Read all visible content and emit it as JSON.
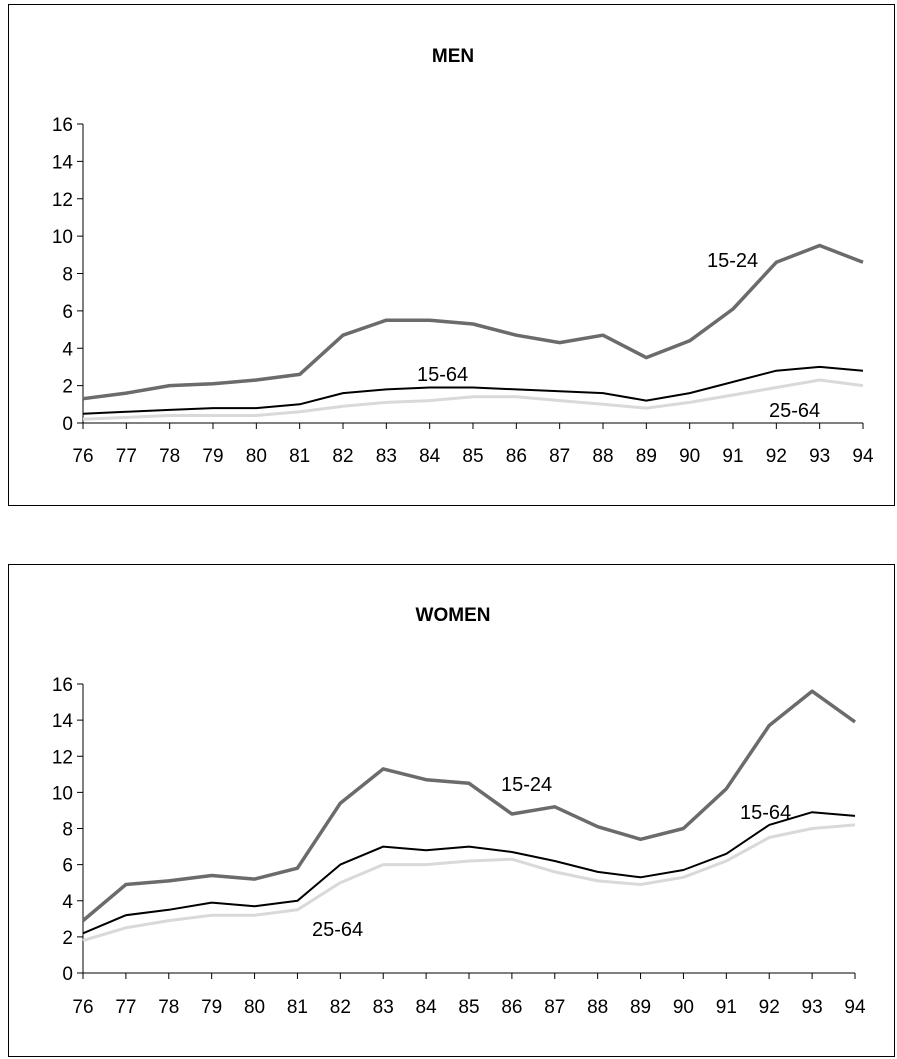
{
  "colors": {
    "series_15_24": "#6b6b6b",
    "series_15_64": "#000000",
    "series_25_64": "#d9d9d9"
  },
  "chart_data": [
    {
      "type": "line",
      "title": "MEN",
      "xlabel": "",
      "ylabel": "",
      "x": [
        "76",
        "77",
        "78",
        "79",
        "80",
        "81",
        "82",
        "83",
        "84",
        "85",
        "86",
        "87",
        "88",
        "89",
        "90",
        "91",
        "92",
        "93",
        "94"
      ],
      "yticks": [
        "0",
        "2",
        "4",
        "6",
        "8",
        "10",
        "12",
        "14",
        "16"
      ],
      "ylim": [
        0,
        16
      ],
      "grid": false,
      "series": [
        {
          "name": "15-24",
          "values": [
            1.3,
            1.6,
            2.0,
            2.1,
            2.3,
            2.6,
            4.7,
            5.5,
            5.5,
            5.3,
            4.7,
            4.3,
            4.7,
            3.5,
            4.4,
            6.1,
            8.6,
            9.5,
            8.6
          ]
        },
        {
          "name": "15-64",
          "values": [
            0.5,
            0.6,
            0.7,
            0.8,
            0.8,
            1.0,
            1.6,
            1.8,
            1.9,
            1.9,
            1.8,
            1.7,
            1.6,
            1.2,
            1.6,
            2.2,
            2.8,
            3.0,
            2.8
          ]
        },
        {
          "name": "25-64",
          "values": [
            0.2,
            0.3,
            0.4,
            0.4,
            0.4,
            0.6,
            0.9,
            1.1,
            1.2,
            1.4,
            1.4,
            1.2,
            1.0,
            0.8,
            1.1,
            1.5,
            1.9,
            2.3,
            2.0
          ]
        }
      ],
      "annotations": [
        "15-24",
        "15-64",
        "25-64"
      ]
    },
    {
      "type": "line",
      "title": "WOMEN",
      "xlabel": "",
      "ylabel": "",
      "x": [
        "76",
        "77",
        "78",
        "79",
        "80",
        "81",
        "82",
        "83",
        "84",
        "85",
        "86",
        "87",
        "88",
        "89",
        "90",
        "91",
        "92",
        "93",
        "94"
      ],
      "yticks": [
        "0",
        "2",
        "4",
        "6",
        "8",
        "10",
        "12",
        "14",
        "16"
      ],
      "ylim": [
        0,
        16
      ],
      "grid": false,
      "series": [
        {
          "name": "15-24",
          "values": [
            2.9,
            4.9,
            5.1,
            5.4,
            5.2,
            5.8,
            9.4,
            11.3,
            10.7,
            10.5,
            8.8,
            9.2,
            8.1,
            7.4,
            8.0,
            10.2,
            13.7,
            15.6,
            13.9
          ]
        },
        {
          "name": "15-64",
          "values": [
            2.2,
            3.2,
            3.5,
            3.9,
            3.7,
            4.0,
            6.0,
            7.0,
            6.8,
            7.0,
            6.7,
            6.2,
            5.6,
            5.3,
            5.7,
            6.6,
            8.2,
            8.9,
            8.7
          ]
        },
        {
          "name": "25-64",
          "values": [
            1.8,
            2.5,
            2.9,
            3.2,
            3.2,
            3.5,
            5.0,
            6.0,
            6.0,
            6.2,
            6.3,
            5.6,
            5.1,
            4.9,
            5.3,
            6.2,
            7.5,
            8.0,
            8.2
          ]
        }
      ],
      "annotations": [
        "15-24",
        "15-64",
        "25-64"
      ]
    }
  ]
}
